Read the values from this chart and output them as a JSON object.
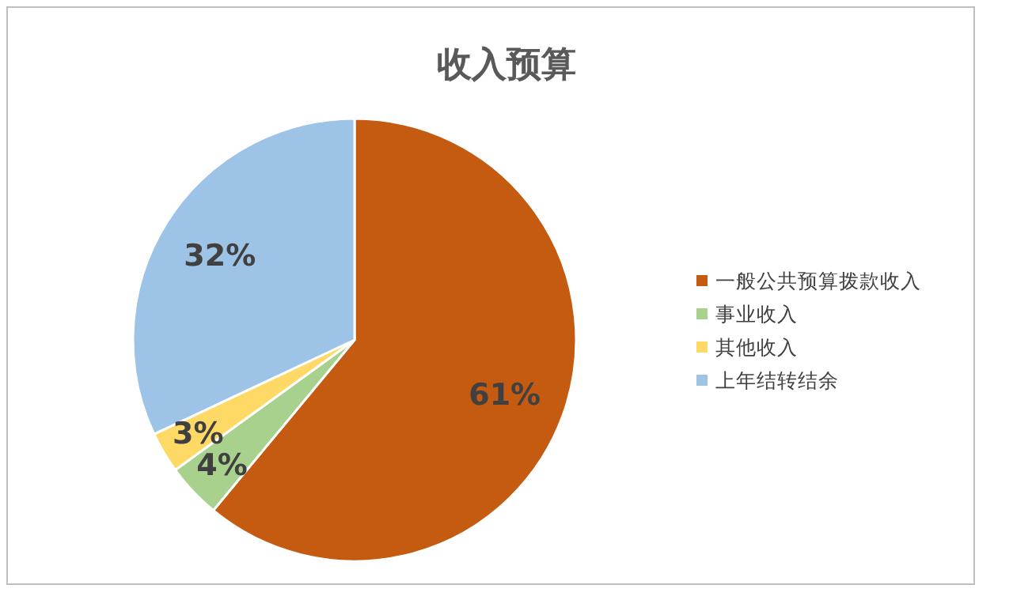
{
  "chart_data": {
    "type": "pie",
    "title": "收入预算",
    "categories": [
      "一般公共预算拨款收入",
      "事业收入",
      "其他收入",
      "上年结转结余"
    ],
    "values": [
      61,
      4,
      3,
      32
    ],
    "colors": [
      "#c55a11",
      "#a9d18e",
      "#ffd966",
      "#9dc3e6"
    ],
    "value_labels": [
      "61%",
      "4%",
      "3%",
      "32%"
    ],
    "legend": "right"
  }
}
